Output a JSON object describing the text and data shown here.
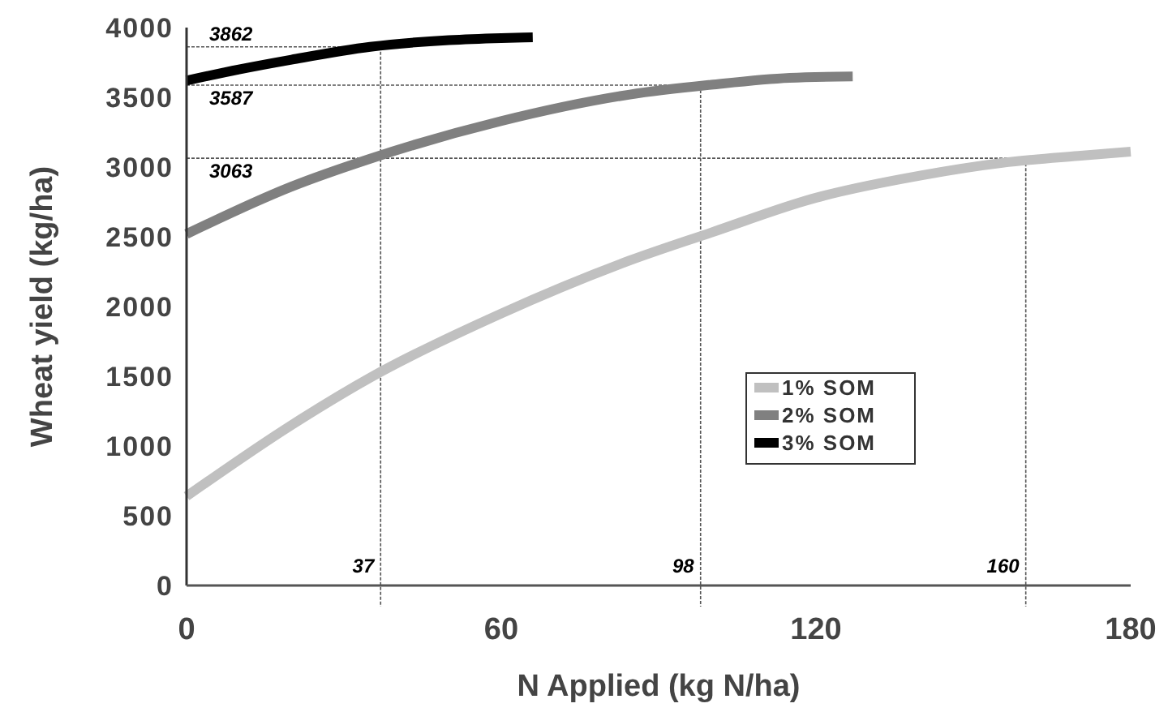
{
  "chart_data": {
    "type": "line",
    "xlabel": "N Applied (kg N/ha)",
    "ylabel": "Wheat yield (kg/ha)",
    "xlim": [
      0,
      180
    ],
    "xticks": [
      0,
      60,
      120,
      180
    ],
    "ylim": [
      0,
      4000
    ],
    "yticks": [
      0,
      500,
      1000,
      1500,
      2000,
      2500,
      3000,
      3500,
      4000
    ],
    "grid": false,
    "legend": "right",
    "marker": "none",
    "line_style": "solid",
    "series": [
      {
        "name": "1% SOM",
        "color": "#c0c0c0",
        "x": [
          0,
          20,
          35,
          60,
          84.5,
          100,
          120,
          140,
          155.5,
          170,
          180
        ],
        "values": [
          640,
          1150,
          1490,
          1950,
          2330,
          2530,
          2780,
          2940,
          3030,
          3080,
          3110
        ]
      },
      {
        "name": "2% SOM",
        "color": "#808080",
        "x": [
          0,
          20,
          35,
          60,
          84.5,
          100,
          115,
          127
        ],
        "values": [
          2520,
          2860,
          3060,
          3330,
          3520,
          3590,
          3640,
          3650
        ]
      },
      {
        "name": "3% SOM",
        "color": "#000000",
        "x": [
          0,
          10,
          20,
          35,
          50,
          60,
          66
        ],
        "values": [
          3620,
          3700,
          3770,
          3862,
          3910,
          3925,
          3930
        ]
      }
    ],
    "ref_lines": [
      {
        "axis": "y",
        "value": 3862,
        "label": "3862"
      },
      {
        "axis": "y",
        "value": 3587,
        "label": "3587"
      },
      {
        "axis": "y",
        "value": 3063,
        "label": "3063"
      },
      {
        "axis": "x",
        "value": 37,
        "label": "37"
      },
      {
        "axis": "x",
        "value": 98,
        "label": "98"
      },
      {
        "axis": "x",
        "value": 160,
        "label": "160"
      }
    ]
  }
}
